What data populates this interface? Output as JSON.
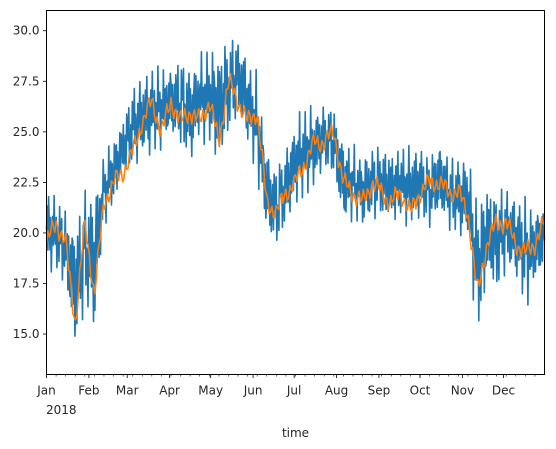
{
  "chart_data": {
    "type": "line",
    "title": "",
    "xlabel": "time",
    "ylabel": "",
    "year_label": "2018",
    "xlim": [
      "2018-01-01",
      "2018-12-31"
    ],
    "ylim": [
      13.0,
      31.0
    ],
    "yticks": [
      15.0,
      17.5,
      20.0,
      22.5,
      25.0,
      27.5,
      30.0
    ],
    "ytick_labels": [
      "15.0",
      "17.5",
      "20.0",
      "22.5",
      "25.0",
      "27.5",
      "30.0"
    ],
    "xtick_dates": [
      "2018-01-01",
      "2018-02-01",
      "2018-03-01",
      "2018-04-01",
      "2018-05-01",
      "2018-06-01",
      "2018-07-01",
      "2018-08-01",
      "2018-09-01",
      "2018-10-01",
      "2018-11-01",
      "2018-12-01"
    ],
    "xtick_labels": [
      "Jan",
      "Feb",
      "Mar",
      "Apr",
      "May",
      "Jun",
      "Jul",
      "Aug",
      "Sep",
      "Oct",
      "Nov",
      "Dec"
    ],
    "grid": false,
    "series": [
      {
        "color": "#1f77b4",
        "x": [
          "2018-01-01",
          "2018-01-08",
          "2018-01-15",
          "2018-01-22",
          "2018-01-29",
          "2018-02-05",
          "2018-02-12",
          "2018-02-19",
          "2018-02-26",
          "2018-03-05",
          "2018-03-12",
          "2018-03-19",
          "2018-03-26",
          "2018-04-02",
          "2018-04-09",
          "2018-04-16",
          "2018-04-23",
          "2018-04-30",
          "2018-05-07",
          "2018-05-14",
          "2018-05-21",
          "2018-05-28",
          "2018-06-04",
          "2018-06-11",
          "2018-06-18",
          "2018-06-25",
          "2018-07-02",
          "2018-07-09",
          "2018-07-16",
          "2018-07-23",
          "2018-07-30",
          "2018-08-06",
          "2018-08-13",
          "2018-08-20",
          "2018-08-27",
          "2018-09-03",
          "2018-09-10",
          "2018-09-17",
          "2018-09-24",
          "2018-10-01",
          "2018-10-08",
          "2018-10-15",
          "2018-10-22",
          "2018-10-29",
          "2018-11-05",
          "2018-11-12",
          "2018-11-19",
          "2018-11-26",
          "2018-12-03",
          "2018-12-10",
          "2018-12-17",
          "2018-12-24",
          "2018-12-31"
        ],
        "low": [
          17.8,
          17.9,
          17.0,
          13.5,
          16.0,
          14.5,
          20.3,
          21.0,
          22.5,
          23.0,
          23.5,
          23.5,
          24.0,
          24.5,
          24.0,
          23.0,
          24.5,
          24.0,
          22.8,
          24.5,
          25.5,
          24.0,
          22.5,
          19.5,
          19.0,
          20.0,
          21.0,
          21.5,
          22.0,
          23.0,
          22.5,
          20.0,
          20.5,
          20.0,
          20.5,
          20.5,
          20.0,
          20.5,
          20.0,
          20.5,
          20.0,
          20.5,
          20.0,
          19.5,
          19.5,
          14.2,
          17.0,
          16.5,
          18.0,
          17.5,
          16.0,
          17.0,
          18.0
        ],
        "high": [
          22.5,
          22.0,
          21.5,
          21.0,
          22.5,
          22.5,
          24.0,
          25.0,
          26.0,
          27.5,
          28.0,
          28.5,
          28.5,
          28.5,
          29.0,
          28.5,
          29.0,
          29.5,
          29.5,
          30.0,
          30.0,
          29.0,
          28.0,
          24.5,
          23.5,
          24.5,
          26.0,
          26.5,
          26.5,
          26.5,
          26.5,
          25.0,
          24.5,
          24.0,
          24.5,
          24.5,
          24.5,
          24.5,
          24.5,
          24.5,
          24.0,
          25.0,
          24.0,
          24.0,
          24.0,
          22.0,
          23.0,
          22.5,
          22.5,
          22.0,
          22.0,
          21.5,
          22.0
        ]
      },
      {
        "color": "#ff7f0e",
        "x": [
          "2018-01-01",
          "2018-01-08",
          "2018-01-15",
          "2018-01-22",
          "2018-01-29",
          "2018-02-05",
          "2018-02-12",
          "2018-02-19",
          "2018-02-26",
          "2018-03-05",
          "2018-03-12",
          "2018-03-19",
          "2018-03-26",
          "2018-04-02",
          "2018-04-09",
          "2018-04-16",
          "2018-04-23",
          "2018-04-30",
          "2018-05-07",
          "2018-05-14",
          "2018-05-21",
          "2018-05-28",
          "2018-06-04",
          "2018-06-11",
          "2018-06-18",
          "2018-06-25",
          "2018-07-02",
          "2018-07-09",
          "2018-07-16",
          "2018-07-23",
          "2018-07-30",
          "2018-08-06",
          "2018-08-13",
          "2018-08-20",
          "2018-08-27",
          "2018-09-03",
          "2018-09-10",
          "2018-09-17",
          "2018-09-24",
          "2018-10-01",
          "2018-10-08",
          "2018-10-15",
          "2018-10-22",
          "2018-10-29",
          "2018-11-05",
          "2018-11-12",
          "2018-11-19",
          "2018-11-26",
          "2018-12-03",
          "2018-12-10",
          "2018-12-17",
          "2018-12-24",
          "2018-12-31"
        ],
        "values": [
          19.5,
          20.5,
          19.5,
          15.5,
          20.5,
          17.0,
          21.5,
          22.5,
          23.0,
          24.0,
          25.5,
          26.5,
          25.0,
          26.5,
          25.5,
          26.0,
          25.5,
          26.5,
          24.5,
          27.5,
          26.5,
          25.5,
          26.0,
          21.5,
          21.0,
          22.0,
          22.5,
          23.5,
          24.5,
          24.5,
          25.0,
          22.5,
          22.0,
          21.5,
          22.5,
          22.0,
          21.5,
          22.0,
          21.0,
          22.0,
          22.5,
          22.5,
          22.0,
          22.0,
          21.0,
          17.0,
          19.5,
          20.5,
          20.5,
          19.5,
          19.0,
          19.5,
          20.5
        ]
      }
    ]
  }
}
